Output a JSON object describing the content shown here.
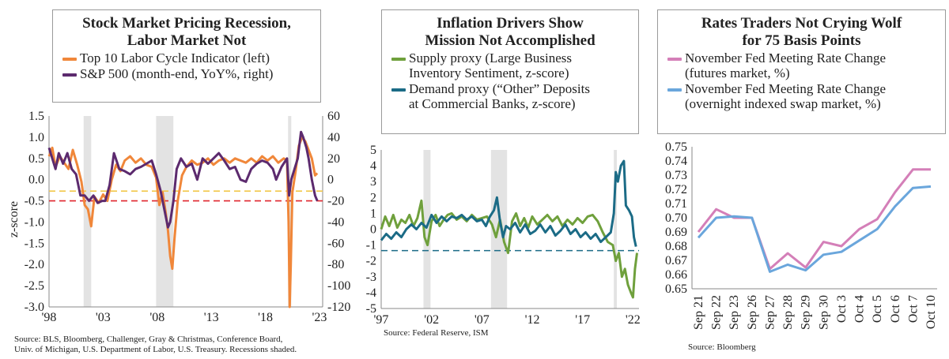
{
  "chart_data": [
    {
      "type": "line",
      "title": "Stock Market Pricing Recession, Labor Market Not",
      "title_lines": [
        "Stock Market Pricing Recession,",
        "Labor Market Not"
      ],
      "ylabel": "z-score",
      "ylim": [
        -3.0,
        1.5
      ],
      "y_ticks": [
        "1.5",
        "1.0",
        "0.5",
        "0.0",
        "-0.5",
        "-1.0",
        "-1.5",
        "-2.0",
        "-2.5",
        "-3.0"
      ],
      "y_tick_values": [
        1.5,
        1.0,
        0.5,
        0.0,
        -0.5,
        -1.0,
        -1.5,
        -2.0,
        -2.5,
        -3.0
      ],
      "y2lim": [
        -120,
        60
      ],
      "y2_ticks": [
        "60",
        "40",
        "20",
        "0",
        "-20",
        "-40",
        "-60",
        "-80",
        "-100",
        "-120"
      ],
      "y2_tick_values": [
        60,
        40,
        20,
        0,
        -20,
        -40,
        -60,
        -80,
        -100,
        -120
      ],
      "xlim": [
        1998.0,
        2023.3
      ],
      "x_ticks": [
        "'98",
        "'03",
        "'08",
        "'13",
        "'18",
        "'23"
      ],
      "x_tick_values": [
        1998,
        2003,
        2008,
        2013,
        2018,
        2023
      ],
      "recessions": [
        [
          2001.2,
          2001.9
        ],
        [
          2007.9,
          2009.5
        ],
        [
          2020.1,
          2020.4
        ]
      ],
      "hlines": [
        {
          "y": -0.27,
          "color": "#f2c84a"
        },
        {
          "y": -0.5,
          "color": "#e0262e"
        }
      ],
      "series": [
        {
          "name": "Top 10 Labor Cycle Indicator (left)",
          "axis": "left",
          "color": "#f0873a",
          "x": [
            1998.0,
            1998.3,
            1998.6,
            1999.0,
            1999.4,
            1999.8,
            2000.2,
            2000.6,
            2001.0,
            2001.3,
            2001.6,
            2001.9,
            2002.2,
            2002.6,
            2003.0,
            2003.4,
            2003.8,
            2004.2,
            2004.6,
            2005.0,
            2005.5,
            2006.0,
            2006.5,
            2007.0,
            2007.5,
            2007.9,
            2008.2,
            2008.5,
            2008.8,
            2009.0,
            2009.2,
            2009.4,
            2009.6,
            2009.9,
            2010.3,
            2010.7,
            2011.2,
            2011.7,
            2012.2,
            2012.7,
            2013.2,
            2013.7,
            2014.2,
            2014.7,
            2015.2,
            2015.7,
            2016.2,
            2016.7,
            2017.2,
            2017.7,
            2018.2,
            2018.7,
            2019.2,
            2019.7,
            2020.0,
            2020.15,
            2020.25,
            2020.35,
            2020.5,
            2020.8,
            2021.1,
            2021.4,
            2021.7,
            2022.0,
            2022.3,
            2022.6,
            2022.8
          ],
          "y": [
            0.55,
            0.75,
            0.3,
            0.55,
            0.4,
            0.25,
            0.7,
            0.35,
            -0.05,
            -0.6,
            -0.7,
            -1.1,
            -0.4,
            -0.55,
            -0.35,
            -0.5,
            0.0,
            0.35,
            0.2,
            0.45,
            0.55,
            0.4,
            0.5,
            0.35,
            0.3,
            0.05,
            -0.6,
            -0.3,
            -0.8,
            -1.2,
            -1.8,
            -2.1,
            -1.4,
            -0.5,
            0.1,
            0.3,
            0.45,
            0.35,
            0.4,
            0.5,
            0.35,
            0.45,
            0.5,
            0.4,
            0.5,
            0.45,
            0.4,
            0.5,
            0.4,
            0.55,
            0.45,
            0.55,
            0.4,
            0.5,
            0.45,
            -1.0,
            -3.0,
            -2.0,
            -0.3,
            0.2,
            0.8,
            1.0,
            0.9,
            0.7,
            0.5,
            0.1,
            0.15
          ]
        },
        {
          "name": "S&P 500 (month-end, YoY%, right)",
          "axis": "right",
          "color": "#5c2a6e",
          "x": [
            1998.0,
            1998.3,
            1998.6,
            1998.9,
            1999.3,
            1999.7,
            2000.1,
            2000.5,
            2000.9,
            2001.3,
            2001.7,
            2002.1,
            2002.5,
            2002.9,
            2003.2,
            2003.6,
            2004.0,
            2004.5,
            2005.0,
            2005.5,
            2006.0,
            2006.5,
            2007.0,
            2007.5,
            2007.9,
            2008.3,
            2008.7,
            2009.0,
            2009.2,
            2009.5,
            2009.8,
            2010.2,
            2010.7,
            2011.2,
            2011.7,
            2012.2,
            2012.7,
            2013.2,
            2013.7,
            2014.2,
            2014.7,
            2015.2,
            2015.7,
            2016.2,
            2016.7,
            2017.2,
            2017.7,
            2018.2,
            2018.7,
            2019.0,
            2019.5,
            2020.0,
            2020.2,
            2020.4,
            2020.7,
            2021.0,
            2021.3,
            2021.5,
            2021.8,
            2022.0,
            2022.3,
            2022.6,
            2022.8
          ],
          "y": [
            30,
            20,
            10,
            25,
            15,
            25,
            10,
            5,
            -15,
            -15,
            -20,
            -15,
            -22,
            -20,
            -20,
            -5,
            25,
            10,
            8,
            5,
            10,
            12,
            15,
            18,
            5,
            -10,
            -30,
            -45,
            -40,
            -20,
            10,
            20,
            12,
            15,
            0,
            20,
            15,
            20,
            25,
            18,
            10,
            12,
            0,
            -2,
            10,
            15,
            18,
            16,
            10,
            0,
            12,
            20,
            -15,
            0,
            10,
            20,
            45,
            40,
            30,
            20,
            0,
            -15,
            -20
          ]
        }
      ],
      "source_lines": [
        "Source: BLS, Bloomberg, Challenger, Gray & Christmas, Conference Board,",
        "Univ. of Michigan, U.S. Department of Labor, U.S. Treasury. Recessions shaded."
      ]
    },
    {
      "type": "line",
      "title": "Inflation Drivers Show Mission Not Accomplished",
      "title_lines": [
        "Inflation Drivers Show",
        "Mission Not Accomplished"
      ],
      "ylim": [
        -5,
        5
      ],
      "y_ticks": [
        "5",
        "4",
        "3",
        "2",
        "1",
        "0",
        "-1",
        "-2",
        "-3",
        "-4",
        "-5"
      ],
      "y_tick_values": [
        5,
        4,
        3,
        2,
        1,
        0,
        -1,
        -2,
        -3,
        -4,
        -5
      ],
      "xlim": [
        1997.0,
        2022.6
      ],
      "x_ticks": [
        "'97",
        "'02",
        "'07",
        "'12",
        "'17",
        "'22"
      ],
      "x_tick_values": [
        1997,
        2002,
        2007,
        2012,
        2017,
        2022
      ],
      "recessions": [
        [
          2001.2,
          2001.9
        ],
        [
          2007.9,
          2009.5
        ],
        [
          2020.1,
          2020.4
        ]
      ],
      "hlines": [
        {
          "y": -1.35,
          "color": "#1b6b86"
        }
      ],
      "series": [
        {
          "name": "Supply proxy (Large Business Inventory Sentiment, z-score)",
          "color": "#6fa03c",
          "x": [
            1997.0,
            1997.4,
            1997.8,
            1998.2,
            1998.6,
            1999.0,
            1999.4,
            1999.8,
            2000.2,
            2000.6,
            2001.0,
            2001.3,
            2001.6,
            2002.0,
            2002.4,
            2002.8,
            2003.2,
            2003.6,
            2004.0,
            2004.5,
            2005.0,
            2005.5,
            2006.0,
            2006.5,
            2007.0,
            2007.5,
            2008.0,
            2008.4,
            2008.8,
            2009.2,
            2009.6,
            2010.0,
            2010.4,
            2010.8,
            2011.2,
            2011.6,
            2012.0,
            2012.5,
            2013.0,
            2013.5,
            2014.0,
            2014.5,
            2015.0,
            2015.5,
            2016.0,
            2016.5,
            2017.0,
            2017.5,
            2018.0,
            2018.5,
            2019.0,
            2019.5,
            2020.0,
            2020.3,
            2020.6,
            2020.9,
            2021.2,
            2021.5,
            2021.8,
            2022.0,
            2022.2,
            2022.4
          ],
          "y": [
            0.0,
            0.8,
            0.2,
            0.9,
            0.1,
            0.6,
            0.4,
            0.9,
            0.2,
            0.7,
            1.8,
            -0.5,
            -1.0,
            0.5,
            0.9,
            0.2,
            0.6,
            0.9,
            1.0,
            0.6,
            0.8,
            0.5,
            0.9,
            0.6,
            0.7,
            0.8,
            0.3,
            -0.5,
            0.6,
            -0.8,
            -1.5,
            0.5,
            1.0,
            0.2,
            0.7,
            0.1,
            0.8,
            0.3,
            0.6,
            0.9,
            0.5,
            0.8,
            0.2,
            0.6,
            0.3,
            0.7,
            0.4,
            0.8,
            0.9,
            0.5,
            -0.2,
            -0.8,
            -1.0,
            -2.0,
            -1.5,
            -3.0,
            -2.5,
            -3.5,
            -4.0,
            -4.3,
            -2.5,
            -1.5
          ]
        },
        {
          "name": "Demand proxy (\"Other\" Deposits at Commercial Banks, z-score)",
          "color": "#1b6b86",
          "x": [
            1997.0,
            1997.5,
            1998.0,
            1998.5,
            1999.0,
            1999.5,
            2000.0,
            2000.5,
            2001.0,
            2001.5,
            2002.0,
            2002.5,
            2003.0,
            2003.5,
            2004.0,
            2004.5,
            2005.0,
            2005.5,
            2006.0,
            2006.5,
            2007.0,
            2007.4,
            2007.8,
            2008.2,
            2008.5,
            2008.8,
            2009.1,
            2009.4,
            2009.8,
            2010.3,
            2010.8,
            2011.3,
            2011.8,
            2012.3,
            2012.8,
            2013.3,
            2013.8,
            2014.3,
            2014.8,
            2015.3,
            2015.8,
            2016.3,
            2016.8,
            2017.3,
            2017.8,
            2018.3,
            2018.8,
            2019.3,
            2019.8,
            2020.1,
            2020.3,
            2020.5,
            2020.8,
            2021.1,
            2021.3,
            2021.6,
            2021.9,
            2022.1,
            2022.3
          ],
          "y": [
            -0.7,
            -0.3,
            -0.6,
            -0.2,
            -0.5,
            0.0,
            0.3,
            0.0,
            0.4,
            0.1,
            0.9,
            0.4,
            0.8,
            0.5,
            0.8,
            0.7,
            0.9,
            0.6,
            0.8,
            0.5,
            0.6,
            0.2,
            0.8,
            1.2,
            2.0,
            0.5,
            -0.5,
            0.2,
            0.0,
            0.4,
            -0.2,
            0.3,
            -0.3,
            -0.1,
            0.3,
            -0.2,
            0.2,
            -0.4,
            -0.1,
            0.3,
            -0.3,
            0.0,
            -0.5,
            -0.2,
            -0.6,
            -0.3,
            -0.8,
            -0.5,
            -0.2,
            1.0,
            3.6,
            3.0,
            4.0,
            4.3,
            1.5,
            1.2,
            0.8,
            -0.5,
            -1.1
          ]
        }
      ],
      "source_lines": [
        "Source: Federal Reserve, ISM"
      ]
    },
    {
      "type": "line",
      "title": "Rates Traders Not Crying Wolf for 75 Basis Points",
      "title_lines": [
        "Rates Traders Not Crying Wolf",
        "for 75 Basis Points"
      ],
      "ylim": [
        0.65,
        0.75
      ],
      "y_ticks": [
        "0.75",
        "0.74",
        "0.73",
        "0.72",
        "0.71",
        "0.70",
        "0.69",
        "0.68",
        "0.67",
        "0.66",
        "0.65"
      ],
      "y_tick_values": [
        0.75,
        0.74,
        0.73,
        0.72,
        0.71,
        0.7,
        0.69,
        0.68,
        0.67,
        0.66,
        0.65
      ],
      "categories": [
        "Sep 21",
        "Sep 22",
        "Sep 23",
        "Sep 26",
        "Sep 27",
        "Sep 28",
        "Sep 29",
        "Sep 30",
        "Oct 3",
        "Oct 4",
        "Oct 5",
        "Oct 6",
        "Oct 7",
        "Oct 10"
      ],
      "series": [
        {
          "name": "November Fed Meeting Rate Change (futures market, %)",
          "color": "#d47fb8",
          "values": [
            0.69,
            0.706,
            0.7,
            0.7,
            0.664,
            0.675,
            0.665,
            0.683,
            0.68,
            0.692,
            0.699,
            0.718,
            0.734,
            0.734
          ]
        },
        {
          "name": "November Fed Meeting Rate Change (overnight indexed swap market, %)",
          "color": "#6aa6dc",
          "values": [
            0.686,
            0.7,
            0.701,
            0.7,
            0.662,
            0.667,
            0.663,
            0.674,
            0.676,
            0.684,
            0.692,
            0.708,
            0.721,
            0.722
          ]
        }
      ],
      "source_lines": [
        "Source: Bloomberg"
      ]
    }
  ],
  "legends": [
    {
      "items": [
        {
          "label": "Top 10 Labor Cycle Indicator (left)",
          "color": "#f0873a"
        },
        {
          "label": "S&P 500 (month-end, YoY%, right)",
          "color": "#5c2a6e"
        }
      ]
    },
    {
      "items": [
        {
          "line1": "Supply proxy (Large Business",
          "line2": "Inventory Sentiment, z-score)",
          "color": "#6fa03c"
        },
        {
          "line1": "Demand proxy (“Other” Deposits",
          "line2": "at Commercial Banks, z-score)",
          "color": "#1b6b86"
        }
      ]
    },
    {
      "items": [
        {
          "line1": "November Fed Meeting Rate Change",
          "line2": "(futures market, %)",
          "color": "#d47fb8"
        },
        {
          "line1": "November Fed Meeting Rate Change",
          "line2": "(overnight indexed swap market, %)",
          "color": "#6aa6dc"
        }
      ]
    }
  ]
}
